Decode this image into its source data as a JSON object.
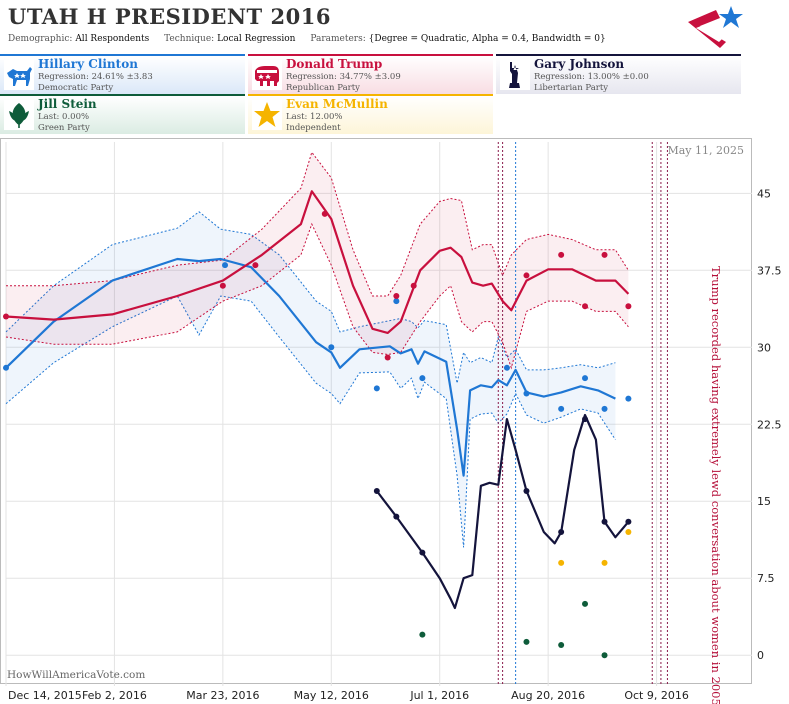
{
  "title": "UTAH H PRESIDENT 2016",
  "params": {
    "demographic_key": "Demographic:",
    "demographic": "All Respondents",
    "technique_key": "Technique:",
    "technique": "Local Regression",
    "parameters_key": "Parameters:",
    "parameters": "{Degree = Quadratic, Alpha = 0.4, Bandwidth = 0}"
  },
  "candidates": [
    {
      "name": "Hillary Clinton",
      "line1": "Regression: 24.61% ±3.83",
      "line2": "Democratic Party",
      "color": "#1f77d4",
      "bg": "#dbe8f8",
      "icon": "donkey-icon"
    },
    {
      "name": "Donald Trump",
      "line1": "Regression: 34.77% ±3.09",
      "line2": "Republican Party",
      "color": "#c8103e",
      "bg": "#f8dde3",
      "icon": "elephant-icon"
    },
    {
      "name": "Gary Johnson",
      "line1": "Regression: 13.00% ±0.00",
      "line2": "Libertarian Party",
      "color": "#14143c",
      "bg": "#e6e6ef",
      "icon": "statue-of-liberty-icon"
    },
    {
      "name": "Jill Stein",
      "line1": "Last: 0.00%",
      "line2": "Green Party",
      "color": "#0e5c3a",
      "bg": "#dbece3",
      "icon": "leaf-icon"
    },
    {
      "name": "Evan McMullin",
      "line1": "Last: 12.00%",
      "line2": "Independent",
      "color": "#f5b400",
      "bg": "#fdf5d8",
      "icon": "star-icon"
    }
  ],
  "watermark": "HowWillAmericaVote.com",
  "chart_data": {
    "type": "line",
    "date_label": "May 11, 2025",
    "annotation": "Trump recorded having extremely lewd conversation about women in 2005",
    "x_ticks": [
      "Dec 14, 2015",
      "Feb 2, 2016",
      "Mar 23, 2016",
      "May 12, 2016",
      "Jul 1, 2016",
      "Aug 20, 2016",
      "Oct 9, 2016"
    ],
    "y_ticks": [
      "0",
      "7.5",
      "15",
      "22.5",
      "30",
      "37.5",
      "45"
    ],
    "ylim": [
      -3,
      50
    ],
    "xlim": [
      "2015-12-14",
      "2016-11-22"
    ],
    "grid": true,
    "series": [
      {
        "name": "Hillary Clinton",
        "color": "#1f77d4",
        "band": true,
        "line": [
          [
            "2015-12-14",
            28
          ],
          [
            "2016-01-05",
            32.5
          ],
          [
            "2016-02-01",
            36.5
          ],
          [
            "2016-03-02",
            38.6
          ],
          [
            "2016-03-12",
            38.4
          ],
          [
            "2016-03-22",
            38.6
          ],
          [
            "2016-04-05",
            37.8
          ],
          [
            "2016-04-18",
            35
          ],
          [
            "2016-05-05",
            30.5
          ],
          [
            "2016-05-12",
            29.5
          ],
          [
            "2016-05-16",
            28
          ],
          [
            "2016-05-25",
            29.8
          ],
          [
            "2016-06-08",
            30.1
          ],
          [
            "2016-06-13",
            29.4
          ],
          [
            "2016-06-18",
            29.8
          ],
          [
            "2016-06-21",
            28.4
          ],
          [
            "2016-06-24",
            29.6
          ],
          [
            "2016-07-04",
            28.6
          ],
          [
            "2016-07-09",
            22
          ],
          [
            "2016-07-12",
            17.5
          ],
          [
            "2016-07-15",
            25.8
          ],
          [
            "2016-07-20",
            26.3
          ],
          [
            "2016-07-25",
            26.1
          ],
          [
            "2016-07-28",
            26.8
          ],
          [
            "2016-08-01",
            26.3
          ],
          [
            "2016-08-05",
            27.8
          ],
          [
            "2016-08-10",
            25.6
          ],
          [
            "2016-08-18",
            25.2
          ],
          [
            "2016-08-26",
            25.6
          ],
          [
            "2016-09-04",
            26.2
          ],
          [
            "2016-09-12",
            25.8
          ],
          [
            "2016-09-20",
            25
          ]
        ],
        "upper": [
          [
            "2015-12-14",
            31.5
          ],
          [
            "2016-01-05",
            36
          ],
          [
            "2016-02-01",
            40
          ],
          [
            "2016-03-02",
            41.6
          ],
          [
            "2016-03-12",
            43.2
          ],
          [
            "2016-03-22",
            41.5
          ],
          [
            "2016-04-05",
            41
          ],
          [
            "2016-04-18",
            39
          ],
          [
            "2016-05-05",
            34.5
          ],
          [
            "2016-05-12",
            33.5
          ],
          [
            "2016-05-16",
            31.5
          ],
          [
            "2016-05-25",
            32
          ],
          [
            "2016-06-08",
            32.6
          ],
          [
            "2016-06-13",
            32.8
          ],
          [
            "2016-06-18",
            32.5
          ],
          [
            "2016-06-21",
            31.9
          ],
          [
            "2016-06-24",
            32.6
          ],
          [
            "2016-07-04",
            32.2
          ],
          [
            "2016-07-09",
            26.5
          ],
          [
            "2016-07-12",
            29.5
          ],
          [
            "2016-07-15",
            28.5
          ],
          [
            "2016-07-20",
            29
          ],
          [
            "2016-07-25",
            28.5
          ],
          [
            "2016-07-28",
            31
          ],
          [
            "2016-08-01",
            29
          ],
          [
            "2016-08-05",
            29.8
          ],
          [
            "2016-08-10",
            27.8
          ],
          [
            "2016-08-18",
            27.8
          ],
          [
            "2016-08-26",
            28
          ],
          [
            "2016-09-04",
            28.3
          ],
          [
            "2016-09-12",
            28
          ],
          [
            "2016-09-20",
            28.5
          ]
        ],
        "lower": [
          [
            "2015-12-14",
            24.5
          ],
          [
            "2016-01-05",
            28.5
          ],
          [
            "2016-02-01",
            32
          ],
          [
            "2016-03-02",
            35
          ],
          [
            "2016-03-12",
            31.2
          ],
          [
            "2016-03-22",
            35
          ],
          [
            "2016-04-05",
            34.5
          ],
          [
            "2016-04-18",
            31
          ],
          [
            "2016-05-05",
            26.5
          ],
          [
            "2016-05-12",
            25.5
          ],
          [
            "2016-05-16",
            24.5
          ],
          [
            "2016-05-25",
            27.5
          ],
          [
            "2016-06-08",
            27.6
          ],
          [
            "2016-06-13",
            26
          ],
          [
            "2016-06-18",
            27
          ],
          [
            "2016-06-21",
            25
          ],
          [
            "2016-06-24",
            26.6
          ],
          [
            "2016-07-04",
            25
          ],
          [
            "2016-07-09",
            17.5
          ],
          [
            "2016-07-12",
            10.5
          ],
          [
            "2016-07-15",
            23
          ],
          [
            "2016-07-20",
            23.5
          ],
          [
            "2016-07-25",
            23.6
          ],
          [
            "2016-07-28",
            22.6
          ],
          [
            "2016-08-01",
            23.5
          ],
          [
            "2016-08-05",
            25.5
          ],
          [
            "2016-08-10",
            23.4
          ],
          [
            "2016-08-18",
            22.6
          ],
          [
            "2016-08-26",
            23.2
          ],
          [
            "2016-09-04",
            24
          ],
          [
            "2016-09-12",
            23.6
          ],
          [
            "2016-09-20",
            21
          ]
        ],
        "points": [
          [
            "2015-12-14",
            28
          ],
          [
            "2016-03-24",
            38
          ],
          [
            "2016-05-12",
            30
          ],
          [
            "2016-06-02",
            26
          ],
          [
            "2016-06-11",
            34.5
          ],
          [
            "2016-06-23",
            27
          ],
          [
            "2016-08-01",
            28
          ],
          [
            "2016-08-10",
            25.5
          ],
          [
            "2016-08-26",
            24
          ],
          [
            "2016-09-06",
            27
          ],
          [
            "2016-09-15",
            24
          ],
          [
            "2016-09-26",
            25
          ]
        ]
      },
      {
        "name": "Donald Trump",
        "color": "#c8103e",
        "band": true,
        "line": [
          [
            "2015-12-14",
            33
          ],
          [
            "2016-01-05",
            32.7
          ],
          [
            "2016-02-01",
            33.2
          ],
          [
            "2016-03-02",
            35
          ],
          [
            "2016-03-23",
            36.5
          ],
          [
            "2016-04-10",
            39
          ],
          [
            "2016-04-28",
            42
          ],
          [
            "2016-05-03",
            45.2
          ],
          [
            "2016-05-12",
            42.5
          ],
          [
            "2016-05-22",
            36
          ],
          [
            "2016-05-31",
            31.8
          ],
          [
            "2016-06-07",
            31.4
          ],
          [
            "2016-06-13",
            32.5
          ],
          [
            "2016-06-22",
            37.5
          ],
          [
            "2016-07-01",
            39.4
          ],
          [
            "2016-07-06",
            39.7
          ],
          [
            "2016-07-11",
            38.8
          ],
          [
            "2016-07-16",
            36.3
          ],
          [
            "2016-07-21",
            36
          ],
          [
            "2016-07-25",
            36.2
          ],
          [
            "2016-07-30",
            34.5
          ],
          [
            "2016-08-03",
            33.6
          ],
          [
            "2016-08-10",
            36.5
          ],
          [
            "2016-08-20",
            37.6
          ],
          [
            "2016-08-31",
            37.6
          ],
          [
            "2016-09-11",
            36.5
          ],
          [
            "2016-09-20",
            36.5
          ],
          [
            "2016-09-26",
            35.2
          ]
        ],
        "upper": [
          [
            "2015-12-14",
            36
          ],
          [
            "2016-01-05",
            36
          ],
          [
            "2016-02-01",
            36.5
          ],
          [
            "2016-03-02",
            38
          ],
          [
            "2016-03-23",
            38.5
          ],
          [
            "2016-04-10",
            41.5
          ],
          [
            "2016-04-28",
            45.5
          ],
          [
            "2016-05-03",
            49
          ],
          [
            "2016-05-12",
            46.5
          ],
          [
            "2016-05-22",
            39.5
          ],
          [
            "2016-05-31",
            35
          ],
          [
            "2016-06-07",
            35
          ],
          [
            "2016-06-13",
            37
          ],
          [
            "2016-06-22",
            42
          ],
          [
            "2016-07-01",
            44.2
          ],
          [
            "2016-07-06",
            44.5
          ],
          [
            "2016-07-11",
            44.3
          ],
          [
            "2016-07-16",
            39.5
          ],
          [
            "2016-07-21",
            40
          ],
          [
            "2016-07-25",
            40
          ],
          [
            "2016-07-30",
            37
          ],
          [
            "2016-08-03",
            39
          ],
          [
            "2016-08-10",
            40.5
          ],
          [
            "2016-08-20",
            41
          ],
          [
            "2016-08-31",
            40.5
          ],
          [
            "2016-09-11",
            39.5
          ],
          [
            "2016-09-20",
            39.5
          ],
          [
            "2016-09-26",
            37.5
          ]
        ],
        "lower": [
          [
            "2015-12-14",
            31
          ],
          [
            "2016-01-05",
            30.3
          ],
          [
            "2016-02-01",
            30.3
          ],
          [
            "2016-03-02",
            31.5
          ],
          [
            "2016-03-23",
            34.5
          ],
          [
            "2016-04-10",
            36
          ],
          [
            "2016-04-28",
            39
          ],
          [
            "2016-05-03",
            42
          ],
          [
            "2016-05-12",
            38
          ],
          [
            "2016-05-22",
            32
          ],
          [
            "2016-05-31",
            29.5
          ],
          [
            "2016-06-07",
            29.3
          ],
          [
            "2016-06-13",
            29.5
          ],
          [
            "2016-06-22",
            32.5
          ],
          [
            "2016-07-01",
            35
          ],
          [
            "2016-07-06",
            36
          ],
          [
            "2016-07-11",
            32.5
          ],
          [
            "2016-07-16",
            31.5
          ],
          [
            "2016-07-21",
            32.5
          ],
          [
            "2016-07-25",
            32.5
          ],
          [
            "2016-07-30",
            30.5
          ],
          [
            "2016-08-03",
            28
          ],
          [
            "2016-08-10",
            33.5
          ],
          [
            "2016-08-20",
            34.5
          ],
          [
            "2016-08-31",
            34.5
          ],
          [
            "2016-09-11",
            33.5
          ],
          [
            "2016-09-20",
            33.5
          ],
          [
            "2016-09-26",
            32
          ]
        ],
        "points": [
          [
            "2015-12-14",
            33
          ],
          [
            "2016-03-23",
            36
          ],
          [
            "2016-04-07",
            38
          ],
          [
            "2016-05-09",
            43
          ],
          [
            "2016-06-07",
            29
          ],
          [
            "2016-06-11",
            35
          ],
          [
            "2016-06-19",
            36
          ],
          [
            "2016-08-10",
            37
          ],
          [
            "2016-08-26",
            39
          ],
          [
            "2016-09-06",
            34
          ],
          [
            "2016-09-15",
            39
          ],
          [
            "2016-09-26",
            34
          ]
        ]
      },
      {
        "name": "Gary Johnson",
        "color": "#14143c",
        "band": false,
        "line": [
          [
            "2016-06-02",
            16
          ],
          [
            "2016-06-11",
            13.5
          ],
          [
            "2016-06-23",
            10
          ],
          [
            "2016-07-01",
            7.5
          ],
          [
            "2016-07-06",
            5.5
          ],
          [
            "2016-07-08",
            4.6
          ],
          [
            "2016-07-12",
            7.5
          ],
          [
            "2016-07-16",
            7.8
          ],
          [
            "2016-07-20",
            16.5
          ],
          [
            "2016-07-24",
            16.8
          ],
          [
            "2016-07-28",
            16.6
          ],
          [
            "2016-08-01",
            23
          ],
          [
            "2016-08-05",
            20
          ],
          [
            "2016-08-10",
            16
          ],
          [
            "2016-08-18",
            12
          ],
          [
            "2016-08-23",
            10.9
          ],
          [
            "2016-08-26",
            12
          ],
          [
            "2016-09-01",
            20
          ],
          [
            "2016-09-06",
            23.4
          ],
          [
            "2016-09-11",
            21
          ],
          [
            "2016-09-15",
            13
          ],
          [
            "2016-09-20",
            11.5
          ],
          [
            "2016-09-26",
            13
          ]
        ],
        "points": [
          [
            "2016-06-02",
            16
          ],
          [
            "2016-06-11",
            13.5
          ],
          [
            "2016-06-23",
            10
          ],
          [
            "2016-08-10",
            16
          ],
          [
            "2016-08-26",
            12
          ],
          [
            "2016-09-06",
            23
          ],
          [
            "2016-09-15",
            13
          ],
          [
            "2016-09-26",
            13
          ]
        ]
      },
      {
        "name": "Jill Stein",
        "color": "#0e5c3a",
        "band": false,
        "line": [],
        "points": [
          [
            "2016-06-23",
            2
          ],
          [
            "2016-08-10",
            1.3
          ],
          [
            "2016-08-26",
            1
          ],
          [
            "2016-09-06",
            5
          ],
          [
            "2016-09-15",
            0
          ]
        ]
      },
      {
        "name": "Evan McMullin",
        "color": "#f5b400",
        "band": false,
        "line": [],
        "points": [
          [
            "2016-08-26",
            9
          ],
          [
            "2016-09-15",
            9
          ],
          [
            "2016-09-26",
            12
          ]
        ]
      }
    ],
    "event_lines": [
      {
        "date": "2016-07-28",
        "color": "#8a1a4a"
      },
      {
        "date": "2016-07-30",
        "color": "#8a1a4a"
      },
      {
        "date": "2016-08-05",
        "color": "#1f77d4"
      },
      {
        "date": "2016-10-07",
        "color": "#8a1a4a"
      },
      {
        "date": "2016-10-11",
        "color": "#8a1a4a"
      },
      {
        "date": "2016-10-14",
        "color": "#8a1a4a"
      }
    ]
  }
}
